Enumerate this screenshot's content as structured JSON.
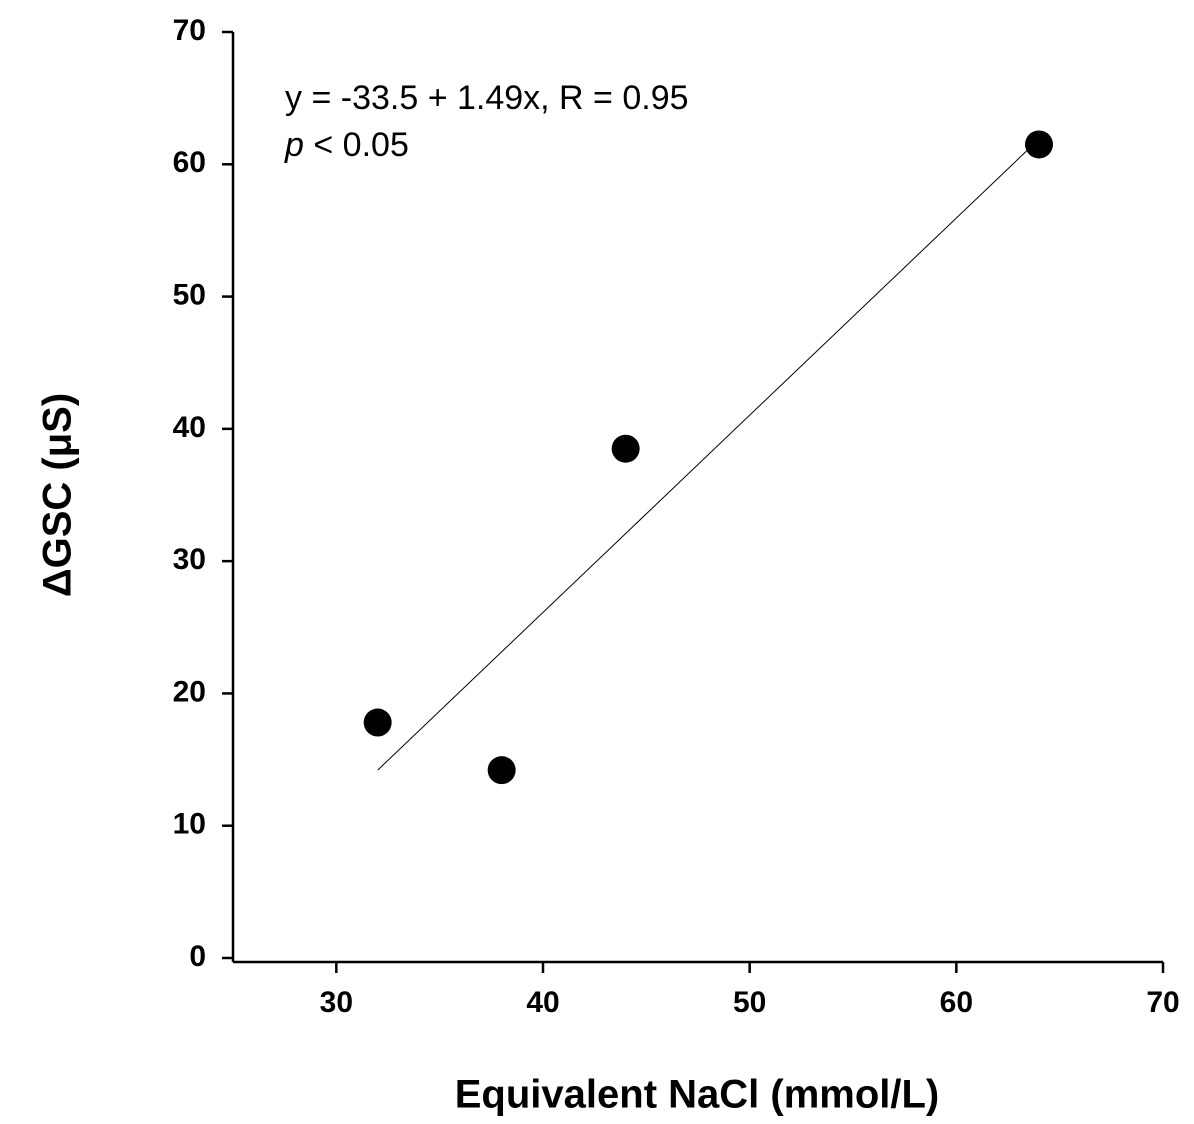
{
  "chart_data": {
    "type": "scatter",
    "x_label": "Equivalent NaCl (mmol/L)",
    "y_label": "ΔGSC (μS)",
    "annotation": "y = -33.5 + 1.49x, R = 0.95",
    "annotation_p": [
      "p",
      "< 0.05"
    ],
    "x": [
      32,
      38,
      44,
      64
    ],
    "values": [
      17.8,
      14.2,
      38.5,
      61.5
    ],
    "color": "#000000",
    "fit_line": {
      "x": [
        32,
        64
      ],
      "values": [
        14.2,
        61.9
      ],
      "color": "#000000"
    },
    "xlim": [
      25,
      70
    ],
    "xticks": [
      30,
      40,
      50,
      60,
      70
    ],
    "ylim": [
      0,
      70
    ],
    "yticks": [
      0,
      10,
      20,
      30,
      40,
      50,
      60,
      70
    ],
    "grid": false
  }
}
